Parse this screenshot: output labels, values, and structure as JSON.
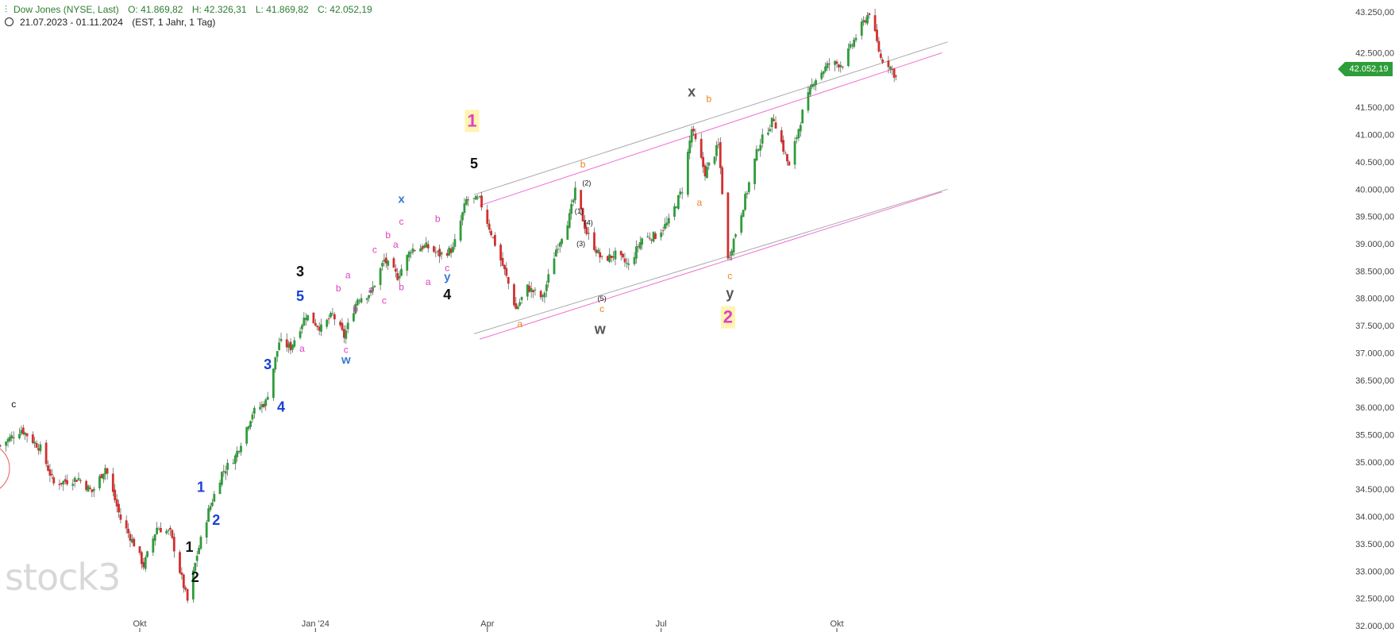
{
  "header": {
    "instrument": "Dow Jones (NYSE, Last)",
    "open": "O: 41.869,82",
    "high": "H: 42.326,31",
    "low": "L: 41.869,82",
    "close": "C: 42.052,19",
    "range": "21.07.2023 - 01.11.2024",
    "meta": "(EST, 1 Jahr, 1 Tag)"
  },
  "watermark": "stock3",
  "last_price": "42.052,19",
  "colors": {
    "up": "#2e9d3a",
    "down": "#d32f2f",
    "channel_gray": "#aaaaaa",
    "channel_pink": "#f06fd0",
    "black": "#111111",
    "blue": "#1a3fd6",
    "magenta": "#e040c0",
    "orange": "#f08020",
    "gray": "#555555",
    "highlight": "#fff4b0"
  },
  "chart_data": {
    "type": "candlestick",
    "ylim": [
      32000,
      43250
    ],
    "x_ticks": [
      {
        "label": "Okt",
        "date": "2023-10-02"
      },
      {
        "label": "Jan '24",
        "date": "2024-01-02"
      },
      {
        "label": "Apr",
        "date": "2024-04-01"
      },
      {
        "label": "Jul",
        "date": "2024-07-01"
      },
      {
        "label": "Okt",
        "date": "2024-10-01"
      }
    ],
    "y_ticks": [
      {
        "value": 43250,
        "label": "43.250,00"
      },
      {
        "value": 42500,
        "label": "42.500,00"
      },
      {
        "value": 41500,
        "label": "41.500,00"
      },
      {
        "value": 41000,
        "label": "41.000,00"
      },
      {
        "value": 40500,
        "label": "40.500,00"
      },
      {
        "value": 40000,
        "label": "40.000,00"
      },
      {
        "value": 39500,
        "label": "39.500,00"
      },
      {
        "value": 39000,
        "label": "39.000,00"
      },
      {
        "value": 38500,
        "label": "38.500,00"
      },
      {
        "value": 38000,
        "label": "38.000,00"
      },
      {
        "value": 37500,
        "label": "37.500,00"
      },
      {
        "value": 37000,
        "label": "37.000,00"
      },
      {
        "value": 36500,
        "label": "36.500,00"
      },
      {
        "value": 36000,
        "label": "36.000,00"
      },
      {
        "value": 35500,
        "label": "35.500,00"
      },
      {
        "value": 35000,
        "label": "35.000,00"
      },
      {
        "value": 34500,
        "label": "34.500,00"
      },
      {
        "value": 34000,
        "label": "34.000,00"
      },
      {
        "value": 33500,
        "label": "33.500,00"
      },
      {
        "value": 33000,
        "label": "33.000,00"
      },
      {
        "value": 32500,
        "label": "32.500,00"
      },
      {
        "value": 32000,
        "label": "32.000,00"
      }
    ],
    "close_path": [
      [
        "2023-07-21",
        35300
      ],
      [
        "2023-08-01",
        35600
      ],
      [
        "2023-08-11",
        35250
      ],
      [
        "2023-08-18",
        34600
      ],
      [
        "2023-08-31",
        34700
      ],
      [
        "2023-09-07",
        34450
      ],
      [
        "2023-09-14",
        34900
      ],
      [
        "2023-09-22",
        33950
      ],
      [
        "2023-09-29",
        33500
      ],
      [
        "2023-10-04",
        33100
      ],
      [
        "2023-10-11",
        33800
      ],
      [
        "2023-10-18",
        33700
      ],
      [
        "2023-10-23",
        33000
      ],
      [
        "2023-10-27",
        32450
      ],
      [
        "2023-11-01",
        33300
      ],
      [
        "2023-11-07",
        34100
      ],
      [
        "2023-11-14",
        34800
      ],
      [
        "2023-11-21",
        35100
      ],
      [
        "2023-11-30",
        35900
      ],
      [
        "2023-12-07",
        36100
      ],
      [
        "2023-12-14",
        37200
      ],
      [
        "2023-12-20",
        37100
      ],
      [
        "2023-12-28",
        37700
      ],
      [
        "2024-01-05",
        37450
      ],
      [
        "2024-01-11",
        37700
      ],
      [
        "2024-01-17",
        37300
      ],
      [
        "2024-01-24",
        38000
      ],
      [
        "2024-01-31",
        38100
      ],
      [
        "2024-02-07",
        38700
      ],
      [
        "2024-02-14",
        38400
      ],
      [
        "2024-02-21",
        38900
      ],
      [
        "2024-02-29",
        38950
      ],
      [
        "2024-03-07",
        38800
      ],
      [
        "2024-03-14",
        38900
      ],
      [
        "2024-03-21",
        39800
      ],
      [
        "2024-03-28",
        39800
      ],
      [
        "2024-04-04",
        39100
      ],
      [
        "2024-04-10",
        38500
      ],
      [
        "2024-04-16",
        37800
      ],
      [
        "2024-04-22",
        38200
      ],
      [
        "2024-04-30",
        38000
      ],
      [
        "2024-05-07",
        38900
      ],
      [
        "2024-05-14",
        39500
      ],
      [
        "2024-05-17",
        39950
      ],
      [
        "2024-05-23",
        39200
      ],
      [
        "2024-05-31",
        38700
      ],
      [
        "2024-06-07",
        38800
      ],
      [
        "2024-06-14",
        38600
      ],
      [
        "2024-06-21",
        39100
      ],
      [
        "2024-06-28",
        39150
      ],
      [
        "2024-07-05",
        39400
      ],
      [
        "2024-07-12",
        40000
      ],
      [
        "2024-07-17",
        41100
      ],
      [
        "2024-07-24",
        40300
      ],
      [
        "2024-07-31",
        40800
      ],
      [
        "2024-08-05",
        38700
      ],
      [
        "2024-08-13",
        39700
      ],
      [
        "2024-08-21",
        40800
      ],
      [
        "2024-08-29",
        41300
      ],
      [
        "2024-09-06",
        40400
      ],
      [
        "2024-09-13",
        41400
      ],
      [
        "2024-09-19",
        42000
      ],
      [
        "2024-09-27",
        42300
      ],
      [
        "2024-10-04",
        42300
      ],
      [
        "2024-10-11",
        42800
      ],
      [
        "2024-10-18",
        43250
      ],
      [
        "2024-10-24",
        42400
      ],
      [
        "2024-10-28",
        42300
      ],
      [
        "2024-11-01",
        42052
      ]
    ],
    "channel_lines": [
      {
        "color": "gray",
        "from": [
          "2024-03-25",
          39900
        ],
        "to": [
          "2024-11-28",
          42700
        ]
      },
      {
        "color": "gray",
        "from": [
          "2024-03-25",
          37350
        ],
        "to": [
          "2024-11-28",
          40000
        ]
      },
      {
        "color": "pink",
        "from": [
          "2024-03-28",
          39700
        ],
        "to": [
          "2024-11-25",
          42500
        ]
      },
      {
        "color": "pink",
        "from": [
          "2024-03-28",
          37250
        ],
        "to": [
          "2024-11-25",
          39950
        ]
      }
    ],
    "wave_labels": [
      {
        "text": "c",
        "date": "2023-07-28",
        "price": 36000,
        "color": "black",
        "size": "small"
      },
      {
        "text": "1",
        "date": "2023-10-28",
        "price": 33350,
        "color": "black",
        "size": "large"
      },
      {
        "text": "2",
        "date": "2023-10-31",
        "price": 32800,
        "color": "black",
        "size": "large"
      },
      {
        "text": "1",
        "date": "2023-11-03",
        "price": 34450,
        "color": "blue",
        "size": "large"
      },
      {
        "text": "2",
        "date": "2023-11-11",
        "price": 33850,
        "color": "blue",
        "size": "large"
      },
      {
        "text": "3",
        "date": "2023-12-08",
        "price": 36700,
        "color": "blue",
        "size": "large"
      },
      {
        "text": "4",
        "date": "2023-12-15",
        "price": 35920,
        "color": "blue",
        "size": "large"
      },
      {
        "text": "5",
        "date": "2023-12-25",
        "price": 37950,
        "color": "blue",
        "size": "large"
      },
      {
        "text": "3",
        "date": "2023-12-25",
        "price": 38400,
        "color": "black",
        "size": "large"
      },
      {
        "text": "a",
        "date": "2023-12-26",
        "price": 37020,
        "color": "magenta",
        "size": "small"
      },
      {
        "text": "b",
        "date": "2024-01-14",
        "price": 38130,
        "color": "magenta",
        "size": "small"
      },
      {
        "text": "a",
        "date": "2024-01-19",
        "price": 38370,
        "color": "magenta",
        "size": "small"
      },
      {
        "text": "c",
        "date": "2024-01-18",
        "price": 37000,
        "color": "magenta",
        "size": "small"
      },
      {
        "text": "w",
        "date": "2024-01-18",
        "price": 36800,
        "color": "bluelight",
        "size": "medium"
      },
      {
        "text": "b",
        "date": "2024-01-23",
        "price": 37750,
        "color": "magenta",
        "size": "small"
      },
      {
        "text": "a",
        "date": "2024-01-31",
        "price": 38100,
        "color": "magenta",
        "size": "small"
      },
      {
        "text": "c",
        "date": "2024-02-02",
        "price": 38830,
        "color": "magenta",
        "size": "small"
      },
      {
        "text": "b",
        "date": "2024-02-09",
        "price": 39100,
        "color": "magenta",
        "size": "small"
      },
      {
        "text": "c",
        "date": "2024-02-07",
        "price": 37900,
        "color": "magenta",
        "size": "small"
      },
      {
        "text": "a",
        "date": "2024-02-13",
        "price": 38930,
        "color": "magenta",
        "size": "small"
      },
      {
        "text": "b",
        "date": "2024-02-16",
        "price": 38150,
        "color": "magenta",
        "size": "small"
      },
      {
        "text": "c",
        "date": "2024-02-16",
        "price": 39350,
        "color": "magenta",
        "size": "small"
      },
      {
        "text": "x",
        "date": "2024-02-16",
        "price": 39750,
        "color": "bluelight",
        "size": "medium"
      },
      {
        "text": "a",
        "date": "2024-03-01",
        "price": 38240,
        "color": "magenta",
        "size": "small"
      },
      {
        "text": "b",
        "date": "2024-03-06",
        "price": 39400,
        "color": "magenta",
        "size": "small"
      },
      {
        "text": "c",
        "date": "2024-03-11",
        "price": 38500,
        "color": "magenta",
        "size": "small"
      },
      {
        "text": "y",
        "date": "2024-03-11",
        "price": 38320,
        "color": "bluelight",
        "size": "medium"
      },
      {
        "text": "4",
        "date": "2024-03-11",
        "price": 37980,
        "color": "black",
        "size": "large"
      },
      {
        "text": "5",
        "date": "2024-03-25",
        "price": 40380,
        "color": "black",
        "size": "large"
      },
      {
        "text": "1",
        "date": "2024-03-24",
        "price": 41150,
        "color": "pink",
        "size": "xlarge",
        "boxed": true
      },
      {
        "text": "a",
        "date": "2024-04-18",
        "price": 37470,
        "color": "orange",
        "size": "small"
      },
      {
        "text": "b",
        "date": "2024-05-21",
        "price": 40400,
        "color": "orange",
        "size": "small"
      },
      {
        "text": "(2)",
        "date": "2024-05-23",
        "price": 40070,
        "color": "black",
        "size": "tiny"
      },
      {
        "text": "(1)",
        "date": "2024-05-19",
        "price": 39550,
        "color": "black",
        "size": "tiny"
      },
      {
        "text": "(4)",
        "date": "2024-05-24",
        "price": 39340,
        "color": "black",
        "size": "tiny"
      },
      {
        "text": "(3)",
        "date": "2024-05-20",
        "price": 38960,
        "color": "black",
        "size": "tiny"
      },
      {
        "text": "(5)",
        "date": "2024-05-31",
        "price": 37950,
        "color": "black",
        "size": "tiny"
      },
      {
        "text": "c",
        "date": "2024-05-31",
        "price": 37750,
        "color": "orange",
        "size": "small"
      },
      {
        "text": "w",
        "date": "2024-05-30",
        "price": 37350,
        "color": "gray",
        "size": "large"
      },
      {
        "text": "x",
        "date": "2024-07-17",
        "price": 41700,
        "color": "gray",
        "size": "large"
      },
      {
        "text": "b",
        "date": "2024-07-26",
        "price": 41600,
        "color": "orange",
        "size": "small"
      },
      {
        "text": "a",
        "date": "2024-07-21",
        "price": 39700,
        "color": "orange",
        "size": "small"
      },
      {
        "text": "c",
        "date": "2024-08-06",
        "price": 38350,
        "color": "orange",
        "size": "small"
      },
      {
        "text": "y",
        "date": "2024-08-06",
        "price": 38000,
        "color": "gray",
        "size": "large"
      },
      {
        "text": "2",
        "date": "2024-08-05",
        "price": 37550,
        "color": "pink",
        "size": "xlarge",
        "boxed": true
      }
    ]
  }
}
